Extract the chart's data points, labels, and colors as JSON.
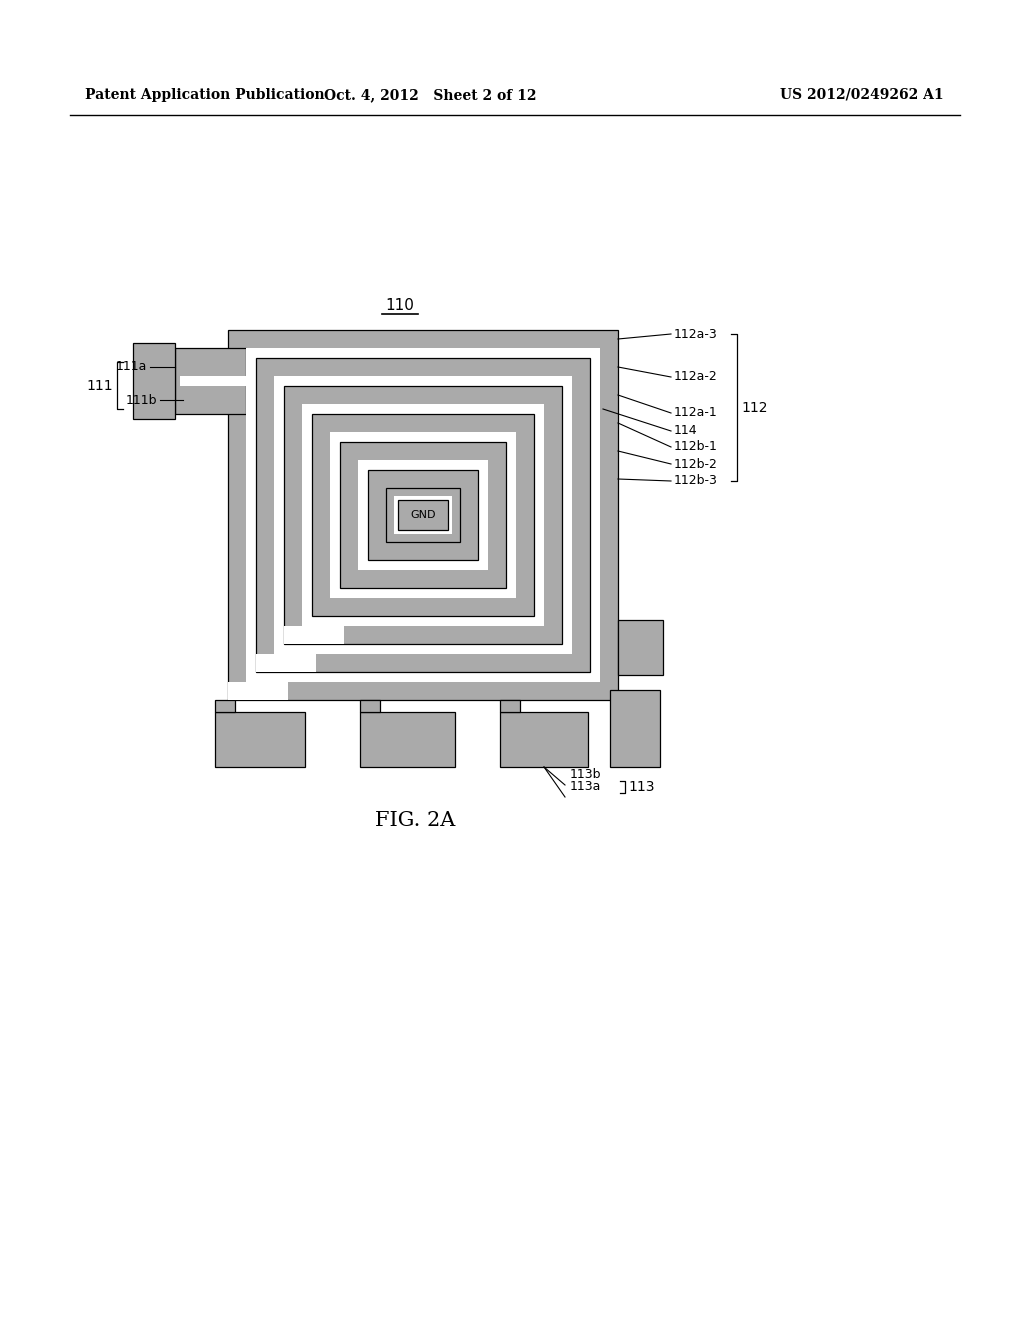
{
  "background_color": "#ffffff",
  "gray_color": "#aaaaaa",
  "white_color": "#ffffff",
  "black_color": "#000000",
  "header_left": "Patent Application Publication",
  "header_mid": "Oct. 4, 2012   Sheet 2 of 12",
  "header_right": "US 2012/0249262 A1",
  "fig_label": "FIG. 2A",
  "label_110": "110",
  "label_111": "111",
  "label_111a": "111a",
  "label_111b": "111b",
  "label_112": "112",
  "label_112a1": "112a-1",
  "label_112a2": "112a-2",
  "label_112a3": "112a-3",
  "label_112b1": "112b-1",
  "label_112b2": "112b-2",
  "label_112b3": "112b-3",
  "label_113": "113",
  "label_113a": "113a",
  "label_113b": "113b",
  "label_114": "114",
  "label_GND": "GND",
  "OL": 228,
  "OR": 618,
  "OT": 330,
  "OB": 700,
  "TW": 18,
  "SP": 10
}
